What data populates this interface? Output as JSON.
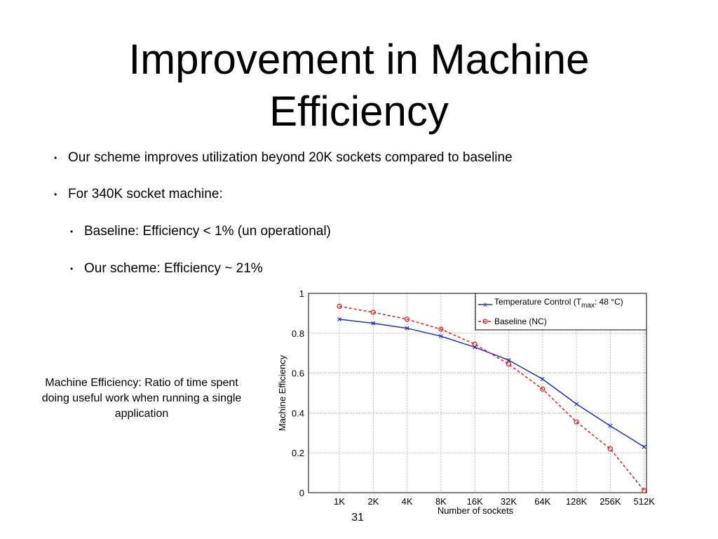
{
  "slide": {
    "title_line1": "Improvement in Machine",
    "title_line2": "Efficiency",
    "bullets": [
      "Our scheme improves utilization beyond 20K sockets compared to baseline",
      "For 340K socket machine:"
    ],
    "sub_bullets": [
      "Baseline: Efficiency < 1% (un operational)",
      "Our scheme: Efficiency ~ 21%"
    ],
    "side_note": "Machine Efficiency: Ratio of time spent doing useful work when running a single application",
    "page_number": "31"
  },
  "chart_data": {
    "type": "line",
    "xlabel": "Number of sockets",
    "ylabel": "Machine Efficiency",
    "categories": [
      "1K",
      "2K",
      "4K",
      "8K",
      "16K",
      "32K",
      "64K",
      "128K",
      "256K",
      "512K"
    ],
    "y_ticks": [
      "0",
      "0.2",
      "0.4",
      "0.6",
      "0.8",
      "1"
    ],
    "ylim": [
      0,
      1
    ],
    "grid": true,
    "legend_position": "top-right",
    "series": [
      {
        "name_main": "Temperature Control (T",
        "name_sub": "max",
        "name_rest": ": 48 °C)",
        "values": [
          0.87,
          0.85,
          0.825,
          0.785,
          0.73,
          0.665,
          0.57,
          0.445,
          0.335,
          0.23
        ],
        "color": "#1f2fbf",
        "marker": "x",
        "line": "solid"
      },
      {
        "name": "Baseline (NC)",
        "values": [
          0.935,
          0.905,
          0.87,
          0.82,
          0.745,
          0.645,
          0.52,
          0.355,
          0.22,
          0.01
        ],
        "color": "#e01a1a",
        "marker": "o",
        "line": "dashed"
      }
    ]
  }
}
